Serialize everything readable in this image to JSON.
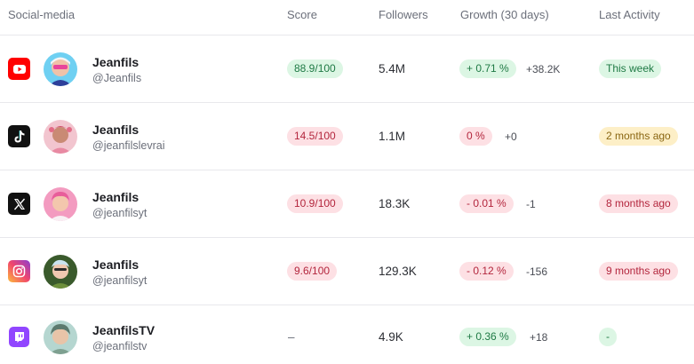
{
  "headers": {
    "social": "Social-media",
    "score": "Score",
    "followers": "Followers",
    "growth": "Growth (30 days)",
    "activity": "Last Activity"
  },
  "rows": [
    {
      "platform": "youtube-icon",
      "name": "Jeanfils",
      "handle": "@Jeanfils",
      "score": "88.9/100",
      "followers": "5.4M",
      "growth_pct": "+ 0.71 %",
      "growth_abs": "+38.2K",
      "activity": "This week"
    },
    {
      "platform": "tiktok-icon",
      "name": "Jeanfils",
      "handle": "@jeanfilslevrai",
      "score": "14.5/100",
      "followers": "1.1M",
      "growth_pct": "0 %",
      "growth_abs": "+0",
      "activity": "2 months ago"
    },
    {
      "platform": "x-icon",
      "name": "Jeanfils",
      "handle": "@jeanfilsyt",
      "score": "10.9/100",
      "followers": "18.3K",
      "growth_pct": "- 0.01 %",
      "growth_abs": "-1",
      "activity": "8 months ago"
    },
    {
      "platform": "instagram-icon",
      "name": "Jeanfils",
      "handle": "@jeanfilsyt",
      "score": "9.6/100",
      "followers": "129.3K",
      "growth_pct": "- 0.12 %",
      "growth_abs": "-156",
      "activity": "9 months ago"
    },
    {
      "platform": "twitch-icon",
      "name": "JeanfilsTV",
      "handle": "@jeanfilstv",
      "score": "–",
      "followers": "4.9K",
      "growth_pct": "+ 0.36 %",
      "growth_abs": "+18",
      "activity": "-"
    }
  ],
  "colors": {
    "good": "#dcf6e4",
    "bad": "#fde0e4",
    "warn": "#fdefc7",
    "youtube": "#ff0000",
    "tiktok": "#111111",
    "x": "#111111",
    "twitch": "#9146ff"
  }
}
